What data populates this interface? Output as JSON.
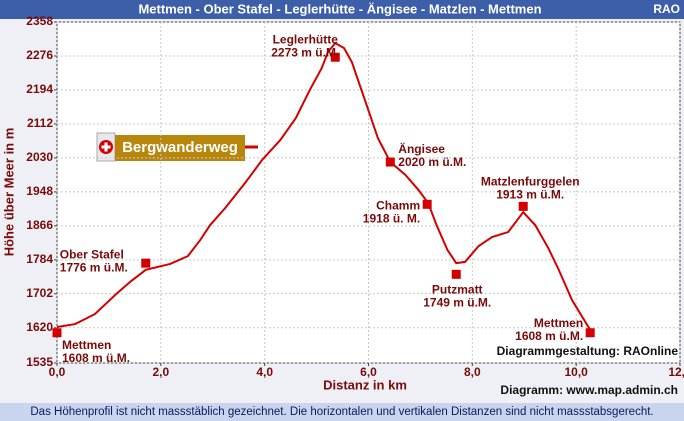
{
  "chart_data": {
    "type": "line",
    "title": "Mettmen -  Ober Stafel - Leglerhütte - Ängisee - Matzlen - Mettmen",
    "logo": "RAO",
    "xlabel": "Distanz in km",
    "ylabel": "Höhe über Meer in m",
    "color": "#d40000",
    "grid": true,
    "x": [
      0,
      0.35,
      0.73,
      1.12,
      1.41,
      1.71,
      2.18,
      2.52,
      2.76,
      2.95,
      3.24,
      3.62,
      3.95,
      4.3,
      4.6,
      4.87,
      5.1,
      5.22,
      5.36,
      5.53,
      5.68,
      5.93,
      6.18,
      6.42,
      6.71,
      6.96,
      7.15,
      7.31,
      7.52,
      7.69,
      7.86,
      8.12,
      8.38,
      8.69,
      8.98,
      9.21,
      9.46,
      9.65,
      9.92,
      10.27
    ],
    "values": [
      1622,
      1629,
      1653,
      1699,
      1731,
      1760,
      1774,
      1793,
      1832,
      1868,
      1909,
      1969,
      2025,
      2073,
      2126,
      2194,
      2247,
      2286,
      2307,
      2295,
      2261,
      2170,
      2078,
      2020,
      1989,
      1953,
      1921,
      1868,
      1808,
      1776,
      1779,
      1817,
      1839,
      1851,
      1899,
      1868,
      1813,
      1764,
      1687,
      1615
    ],
    "waypoints": {
      "names": [
        "Mettmen",
        "Ober Stafel",
        "Leglerhütte",
        "Ängisee",
        "Chamm",
        "Putzmatt",
        "Matzlenfurggelen",
        "Mettmen"
      ],
      "x": [
        0,
        1.71,
        5.36,
        6.42,
        7.13,
        7.69,
        8.98,
        10.27
      ],
      "values": [
        1608,
        1776,
        2273,
        2020,
        1918,
        1749,
        1913,
        1608
      ],
      "value_labels": [
        "1608 m ü.M.",
        "1776 m ü.M.",
        "2273 m ü.M.",
        "2020 m ü.M.",
        "1918 ü. M.",
        "1749 m ü.M.",
        "1913 m ü.M.",
        "1608 m ü.M."
      ]
    },
    "sign": "Bergwanderweg",
    "annotations": [
      "Diagrammgestaltung: RAOnline",
      "Diagramm: www.map.admin.ch"
    ],
    "xlim": [
      0,
      12
    ],
    "xticks": [
      {
        "value": 0,
        "label": "0,0"
      },
      {
        "value": 2,
        "label": "2,0"
      },
      {
        "value": 4,
        "label": "4,0"
      },
      {
        "value": 6,
        "label": "6,0"
      },
      {
        "value": 8,
        "label": "8,0"
      },
      {
        "value": 10,
        "label": "10,0"
      },
      {
        "value": 12,
        "label": "12,0"
      }
    ],
    "ylim": [
      1535,
      2358
    ],
    "yticks": [
      1535,
      1620,
      1702,
      1784,
      1866,
      1948,
      2030,
      2112,
      2194,
      2276,
      2358
    ]
  },
  "footer": "Das Höhenprofil ist nicht massstäblich gezeichnet. Die horizontalen und vertikalen Distanzen sind nicht massstabsgerecht."
}
